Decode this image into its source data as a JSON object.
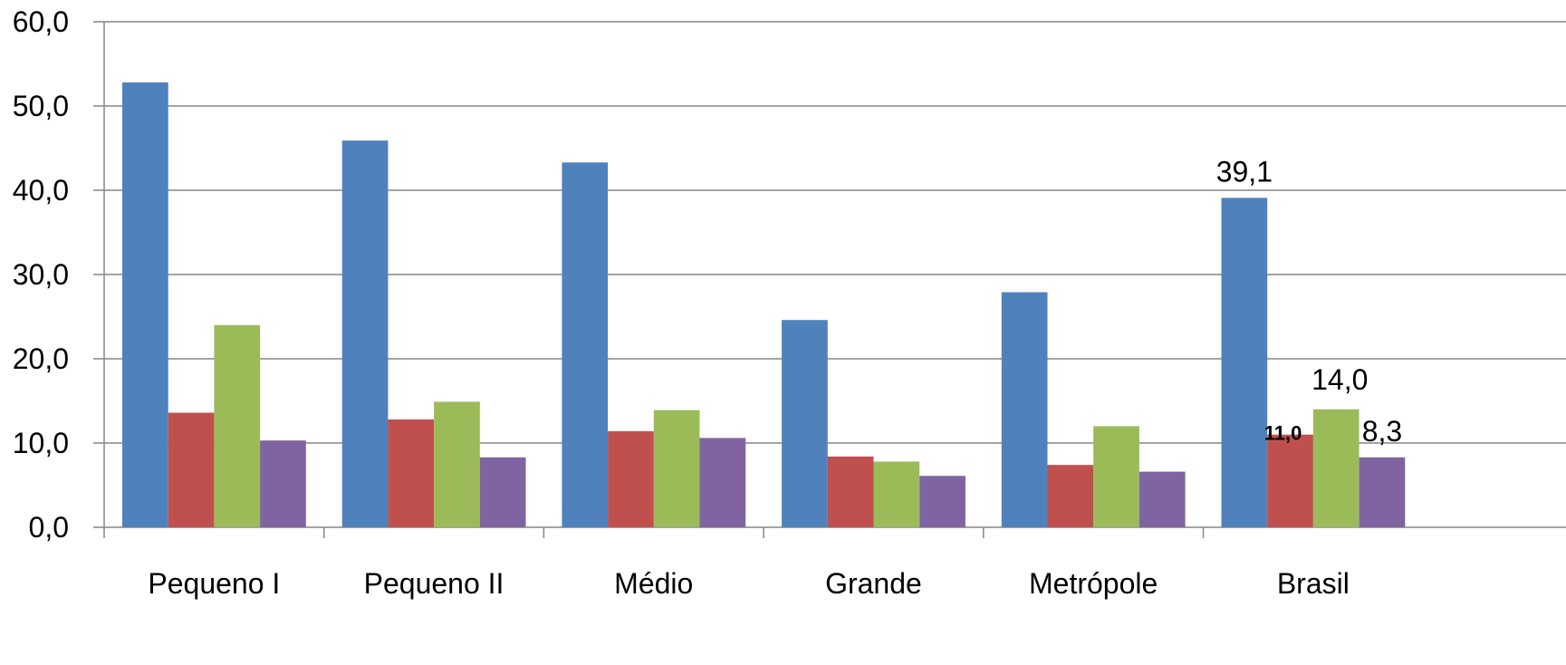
{
  "chart_data": {
    "type": "bar",
    "title": "",
    "xlabel": "",
    "ylabel": "",
    "ylim": [
      0,
      60
    ],
    "yticks": [
      "0,0",
      "10,0",
      "20,0",
      "30,0",
      "40,0",
      "50,0",
      "60,0"
    ],
    "grid": true,
    "legend": "none",
    "categories": [
      "Pequeno I",
      "Pequeno II",
      "Médio",
      "Grande",
      "Metrópole",
      "Brasil"
    ],
    "series": [
      {
        "color": "#4f81bd",
        "values": [
          52.8,
          45.9,
          43.3,
          24.6,
          27.9,
          39.1
        ]
      },
      {
        "color": "#c0504d",
        "values": [
          13.6,
          12.8,
          11.4,
          8.4,
          7.4,
          11.0
        ]
      },
      {
        "color": "#9bbb59",
        "values": [
          24.0,
          14.9,
          13.9,
          7.8,
          12.0,
          14.0
        ]
      },
      {
        "color": "#8064a2",
        "values": [
          10.3,
          8.3,
          10.6,
          6.1,
          6.6,
          8.3
        ]
      }
    ],
    "data_labels": [
      {
        "series": 0,
        "category": 5,
        "text": "39,1"
      },
      {
        "series": 1,
        "category": 5,
        "text": "11,0"
      },
      {
        "series": 2,
        "category": 5,
        "text": "14,0"
      },
      {
        "series": 3,
        "category": 5,
        "text": "8,3"
      }
    ]
  }
}
